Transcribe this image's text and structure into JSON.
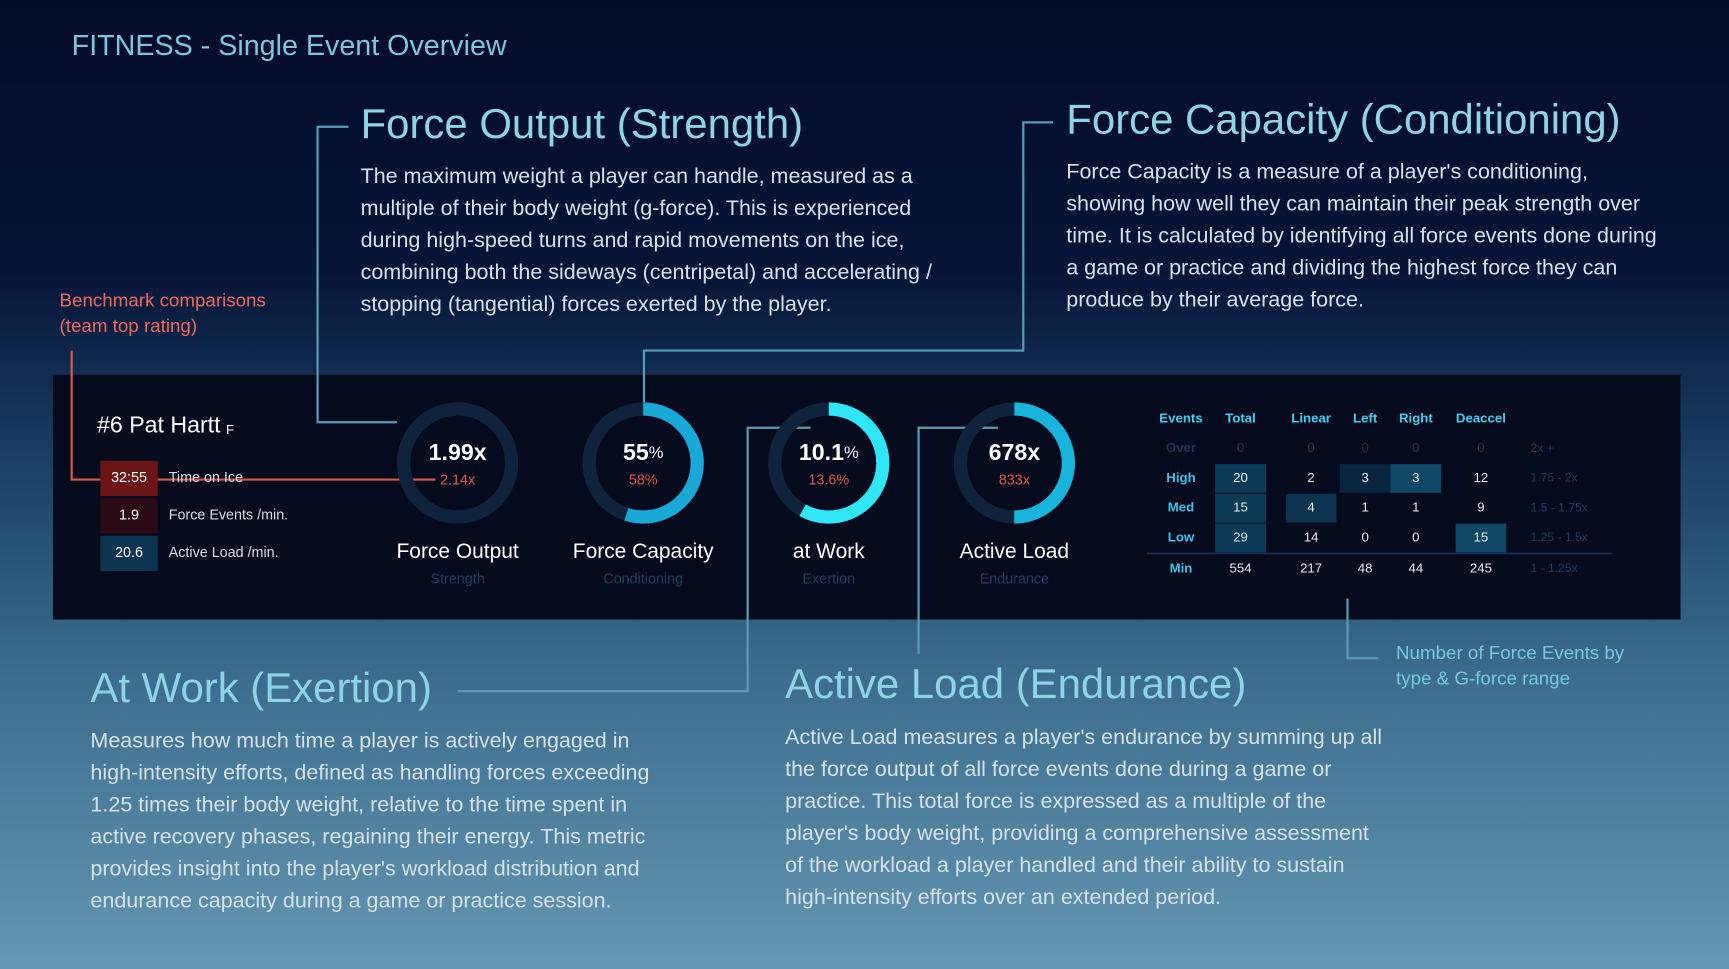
{
  "header": {
    "title": "FITNESS - Single Event Overview"
  },
  "sections": [
    {
      "title": "Force Output (Strength)",
      "text": "The maximum weight a player can handle, measured as a multiple of their body weight (g-force). This is experienced during high-speed turns and rapid movements on the ice, combining both the sideways (centripetal) and accelerating / stopping (tangential) forces exerted by the player."
    },
    {
      "title": "Force Capacity (Conditioning)",
      "text": "Force Capacity is a measure of a player's conditioning, showing how well they can maintain their peak strength over time. It is calculated by identifying all force events done during a game or practice and dividing the highest force they can produce by their average force."
    },
    {
      "title": "At Work (Exertion)",
      "text": "Measures how much time a player is actively engaged in high-intensity efforts, defined as handling forces exceeding 1.25 times their body weight, relative to the time spent in active recovery phases, regaining their energy. This metric provides insight into the player's workload distribution and endurance capacity during a game or practice session."
    },
    {
      "title": "Active Load (Endurance)",
      "text": "Active Load measures a player's endurance by summing up all the force output of all force events done during a game or practice. This total force is expressed as a multiple of the player's body weight, providing a comprehensive assessment of the workload a player handled and their ability to sustain high-intensity efforts over an extended period."
    }
  ],
  "annotations": {
    "benchmark": "Benchmark comparisons (team top rating)",
    "events": "Number of Force Events by type & G-force range"
  },
  "player": {
    "name": "#6 Pat Hartt",
    "position": "F",
    "stats": [
      {
        "value": "32:55",
        "label": "Time on Ice"
      },
      {
        "value": "1.9",
        "label": "Force Events /min."
      },
      {
        "value": "20.6",
        "label": "Active Load /min."
      }
    ]
  },
  "gauges": [
    {
      "value": "1.99x",
      "benchmark": "2.14x",
      "label": "Force Output",
      "sublabel": "Strength",
      "arc": 0
    },
    {
      "value": "55",
      "unit": "%",
      "benchmark": "58%",
      "label": "Force Capacity",
      "sublabel": "Conditioning",
      "arc": 55
    },
    {
      "value": "10.1",
      "unit": "%",
      "benchmark": "13.6%",
      "label": "at Work",
      "sublabel": "Exertion",
      "arc": 58
    },
    {
      "value": "678x",
      "benchmark": "833x",
      "label": "Active Load",
      "sublabel": "Endurance",
      "arc": 50
    }
  ],
  "table": {
    "header": [
      "Events",
      "Total",
      "Linear",
      "Left",
      "Right",
      "Deaccel"
    ],
    "rows": [
      [
        "Over",
        "0",
        "0",
        "0",
        "0",
        "0",
        "2x +"
      ],
      [
        "High",
        "20",
        "2",
        "3",
        "3",
        "12",
        "1.75 - 2x"
      ],
      [
        "Med",
        "15",
        "4",
        "1",
        "1",
        "9",
        "1.5 - 1.75x"
      ],
      [
        "Low",
        "29",
        "14",
        "0",
        "0",
        "15",
        "1.25 - 1.5x"
      ],
      [
        "Min",
        "554",
        "217",
        "48",
        "44",
        "245",
        "1 - 1.25x"
      ]
    ]
  }
}
